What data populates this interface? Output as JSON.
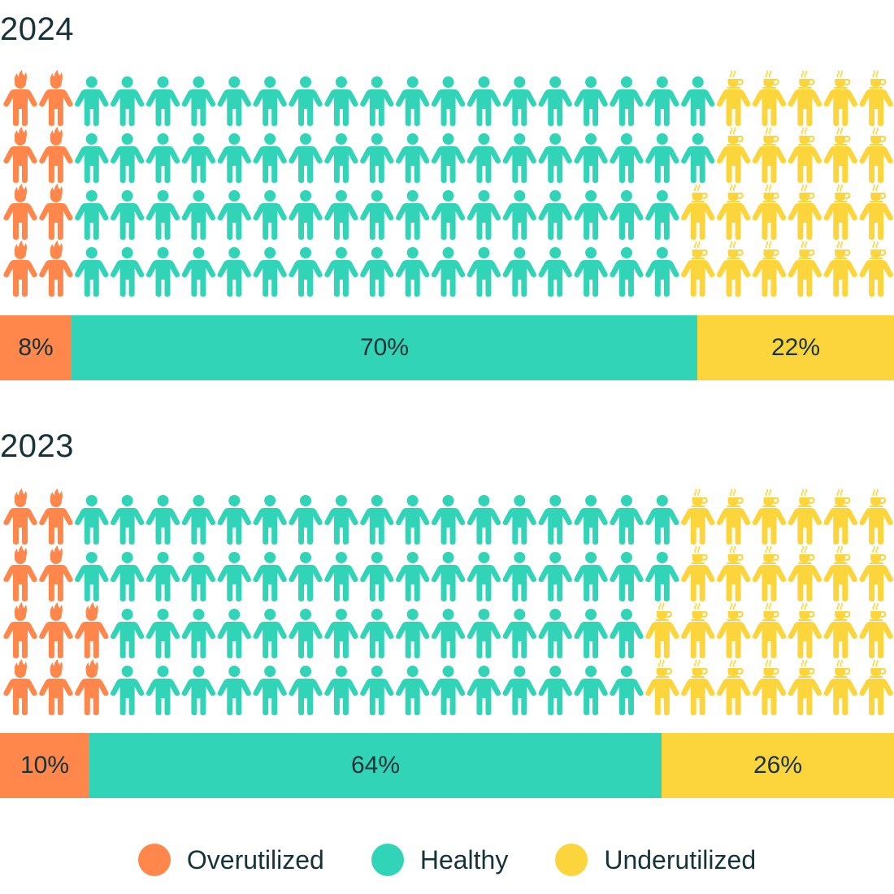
{
  "chart_data": {
    "type": "pictograph",
    "grid": {
      "columns": 25,
      "rows": 4,
      "total": 100
    },
    "categories": [
      "Overutilized",
      "Healthy",
      "Underutilized"
    ],
    "colors": {
      "Overutilized": "#FF874B",
      "Healthy": "#32D4B8",
      "Underutilized": "#FCD43C"
    },
    "icons": {
      "Overutilized": "flame-person-icon",
      "Healthy": "person-icon",
      "Underutilized": "coffee-person-icon"
    },
    "panels": [
      {
        "title": "2024",
        "values": [
          8,
          70,
          22
        ],
        "labels": [
          "8%",
          "70%",
          "22%"
        ],
        "rows": [
          [
            2,
            18,
            5
          ],
          [
            2,
            18,
            5
          ],
          [
            2,
            17,
            6
          ],
          [
            2,
            17,
            6
          ]
        ]
      },
      {
        "title": "2023",
        "values": [
          10,
          64,
          26
        ],
        "labels": [
          "10%",
          "64%",
          "26%"
        ],
        "rows": [
          [
            2,
            17,
            6
          ],
          [
            2,
            17,
            6
          ],
          [
            3,
            15,
            7
          ],
          [
            3,
            15,
            7
          ]
        ]
      }
    ],
    "legend": {
      "placement": "bottom",
      "entries": [
        "Overutilized",
        "Healthy",
        "Underutilized"
      ]
    }
  }
}
